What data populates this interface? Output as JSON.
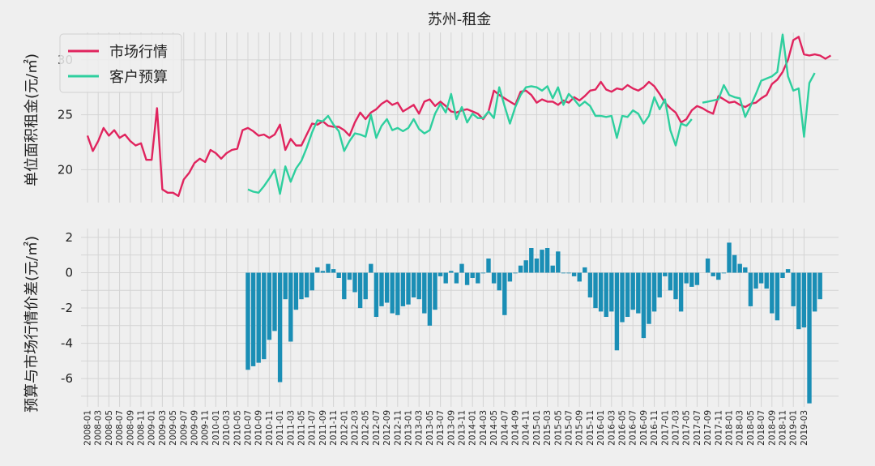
{
  "chart_data": [
    {
      "type": "line",
      "title": "苏州-租金",
      "ylabel": "单位面积租金(元/㎡)",
      "ylim": [
        17,
        32.5
      ],
      "yticks": [
        20,
        25,
        30
      ],
      "grid": true,
      "legend": "top-left",
      "start_month": "2008-01",
      "series": [
        {
          "name": "市场行情",
          "color": "#e0245e",
          "values": [
            23.1,
            21.7,
            22.6,
            23.8,
            23.1,
            23.6,
            22.9,
            23.2,
            22.6,
            22.2,
            22.4,
            20.9,
            20.9,
            25.6,
            18.2,
            17.9,
            17.9,
            17.6,
            19.1,
            19.7,
            20.6,
            21.0,
            20.7,
            21.8,
            21.5,
            21.0,
            21.5,
            21.8,
            21.9,
            23.6,
            23.8,
            23.5,
            23.1,
            23.2,
            22.9,
            23.2,
            24.1,
            21.8,
            22.8,
            22.2,
            22.2,
            23.2,
            24.2,
            24.1,
            24.4,
            24.0,
            23.9,
            23.9,
            23.6,
            23.1,
            24.3,
            25.2,
            24.6,
            25.2,
            25.5,
            26.0,
            26.3,
            25.9,
            26.1,
            25.3,
            25.6,
            25.9,
            25.1,
            26.2,
            26.4,
            25.8,
            26.2,
            25.8,
            25.3,
            25.2,
            25.4,
            25.5,
            25.3,
            25.1,
            24.6,
            25.3,
            27.2,
            26.8,
            26.5,
            26.2,
            25.9,
            27.1,
            27.2,
            26.8,
            26.1,
            26.4,
            26.2,
            26.2,
            25.9,
            26.3,
            26.1,
            26.6,
            26.3,
            26.7,
            27.2,
            27.3,
            28.0,
            27.3,
            27.1,
            27.4,
            27.3,
            27.7,
            27.4,
            27.2,
            27.5,
            28.0,
            27.6,
            26.9,
            26.1,
            25.6,
            25.2,
            24.3,
            24.6,
            25.4,
            25.8,
            25.6,
            25.3,
            25.1,
            26.7,
            26.4,
            26.1,
            26.2,
            25.9,
            25.7,
            26.0,
            26.1,
            26.5,
            26.8,
            27.8,
            28.2,
            28.9,
            30.0,
            31.8,
            32.1,
            30.5,
            30.4,
            30.5,
            30.4,
            30.1,
            30.4
          ]
        },
        {
          "name": "客户预算",
          "color": "#2ecf9e",
          "values": [
            null,
            null,
            null,
            null,
            null,
            null,
            null,
            null,
            null,
            null,
            null,
            null,
            null,
            null,
            null,
            null,
            null,
            null,
            null,
            null,
            null,
            null,
            null,
            null,
            null,
            null,
            null,
            null,
            null,
            null,
            18.2,
            18.0,
            17.9,
            18.5,
            19.2,
            20.0,
            17.8,
            20.3,
            18.9,
            20.1,
            20.8,
            22.0,
            23.4,
            24.5,
            24.4,
            24.9,
            24.1,
            23.5,
            21.7,
            22.6,
            23.3,
            23.2,
            23.0,
            25.0,
            22.9,
            24.0,
            24.6,
            23.6,
            23.8,
            23.5,
            23.8,
            24.6,
            23.7,
            23.3,
            23.6,
            25.1,
            26.0,
            25.2,
            26.9,
            24.6,
            25.7,
            24.3,
            25.1,
            24.7,
            24.7,
            25.3,
            24.7,
            27.5,
            25.8,
            24.2,
            25.7,
            26.8,
            27.5,
            27.6,
            27.5,
            27.2,
            27.6,
            26.5,
            27.5,
            25.9,
            26.9,
            26.4,
            25.8,
            26.2,
            25.8,
            24.9,
            24.9,
            24.8,
            24.9,
            22.9,
            24.9,
            24.8,
            25.4,
            25.1,
            24.2,
            24.9,
            26.6,
            25.5,
            26.4,
            23.6,
            22.2,
            24.2,
            24.0,
            24.6,
            null,
            26.1,
            26.2,
            26.3,
            26.4,
            27.7,
            26.8,
            26.6,
            26.5,
            24.8,
            25.8,
            26.9,
            28.1,
            28.3,
            28.5,
            28.9,
            32.3,
            28.5,
            27.2,
            27.4,
            23.0,
            27.9,
            28.8
          ]
        }
      ]
    },
    {
      "type": "bar",
      "ylabel": "预算与市场行情价差(元/㎡)",
      "ylim": [
        -7.6,
        2.5
      ],
      "yticks": [
        -6,
        -4,
        -2,
        0,
        2
      ],
      "grid": true,
      "start_month": "2008-01",
      "color": "#1a8eb5",
      "values": [
        null,
        null,
        null,
        null,
        null,
        null,
        null,
        null,
        null,
        null,
        null,
        null,
        null,
        null,
        null,
        null,
        null,
        null,
        null,
        null,
        null,
        null,
        null,
        null,
        null,
        null,
        null,
        null,
        null,
        null,
        -5.5,
        -5.3,
        -5.1,
        -4.9,
        -3.8,
        -3.3,
        -6.2,
        -1.5,
        -3.9,
        -2.1,
        -1.5,
        -1.4,
        -1.0,
        0.3,
        0.1,
        0.5,
        0.2,
        -0.3,
        -1.5,
        -0.4,
        -1.1,
        -2.0,
        -1.5,
        0.5,
        -2.5,
        -1.9,
        -1.7,
        -2.3,
        -2.4,
        -1.9,
        -1.8,
        -1.4,
        -1.5,
        -2.3,
        -3.0,
        -2.1,
        -0.2,
        -0.6,
        0.1,
        -0.6,
        0.5,
        -0.7,
        -0.3,
        -0.6,
        0.0,
        0.8,
        -0.6,
        -1.0,
        -2.4,
        -0.5,
        0.0,
        0.4,
        0.7,
        1.4,
        0.8,
        1.3,
        1.4,
        0.4,
        1.2,
        0.0,
        0.0,
        -0.2,
        -0.5,
        0.3,
        -1.4,
        -2.0,
        -2.2,
        -2.5,
        -2.2,
        -4.4,
        -2.8,
        -2.5,
        -2.1,
        -2.3,
        -3.7,
        -2.9,
        -2.2,
        -1.4,
        -0.2,
        -1.0,
        -1.5,
        -2.2,
        -0.6,
        -0.8,
        -0.7,
        null,
        0.8,
        -0.2,
        -0.4,
        0.0,
        1.7,
        1.0,
        0.5,
        0.3,
        -1.9,
        -0.9,
        -0.6,
        -0.9,
        -2.3,
        -2.7,
        -0.3,
        0.2,
        -1.9,
        -3.2,
        -3.1,
        -7.4,
        -2.2,
        -1.5
      ]
    }
  ],
  "xticks": [
    "2008-01",
    "2008-03",
    "2008-05",
    "2008-07",
    "2008-09",
    "2008-11",
    "2009-01",
    "2009-03",
    "2009-05",
    "2009-07",
    "2009-09",
    "2009-11",
    "2010-01",
    "2010-03",
    "2010-05",
    "2010-07",
    "2010-09",
    "2010-11",
    "2011-01",
    "2011-03",
    "2011-05",
    "2011-07",
    "2011-09",
    "2011-11",
    "2012-01",
    "2012-03",
    "2012-05",
    "2012-07",
    "2012-09",
    "2012-11",
    "2013-01",
    "2013-03",
    "2013-05",
    "2013-07",
    "2013-09",
    "2013-11",
    "2014-01",
    "2014-03",
    "2014-05",
    "2014-07",
    "2014-09",
    "2014-11",
    "2015-01",
    "2015-03",
    "2015-05",
    "2015-07",
    "2015-09",
    "2015-11",
    "2016-01",
    "2016-03",
    "2016-05",
    "2016-07",
    "2016-09",
    "2016-11",
    "2017-01",
    "2017-03",
    "2017-05",
    "2017-07",
    "2017-09",
    "2017-11",
    "2018-01",
    "2018-03",
    "2018-05",
    "2018-07",
    "2018-09",
    "2018-11",
    "2019-01",
    "2019-03"
  ]
}
